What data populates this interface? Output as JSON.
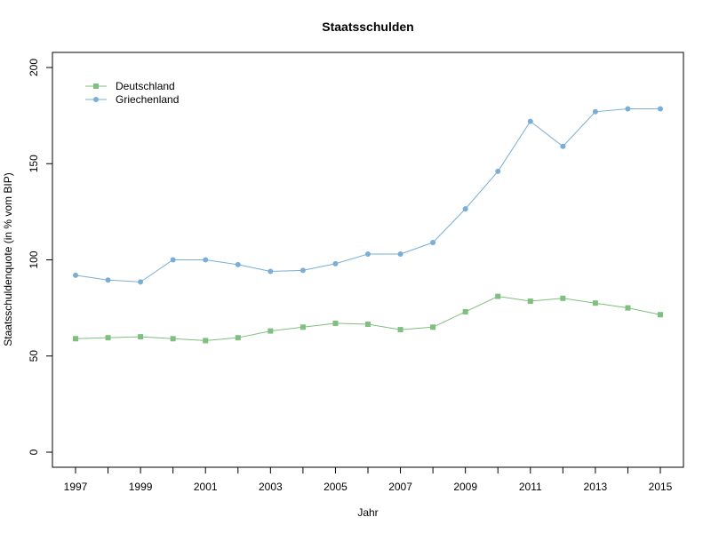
{
  "chart_data": {
    "type": "line",
    "title": "Staatsschulden",
    "xlabel": "Jahr",
    "ylabel": "Staatsschuldenquote (in % vom BIP)",
    "xlim": [
      1997,
      2015
    ],
    "ylim": [
      0,
      200
    ],
    "x": [
      1997,
      1998,
      1999,
      2000,
      2001,
      2002,
      2003,
      2004,
      2005,
      2006,
      2007,
      2008,
      2009,
      2010,
      2011,
      2012,
      2013,
      2014,
      2015
    ],
    "x_tick_labels": [
      "1997",
      "1999",
      "2001",
      "2003",
      "2005",
      "2007",
      "2009",
      "2011",
      "2013",
      "2015"
    ],
    "y_ticks": [
      0,
      50,
      100,
      150,
      200
    ],
    "grid": false,
    "legend_position": "top-left",
    "series": [
      {
        "name": "Deutschland",
        "color": "#7fbf7f",
        "marker": "square",
        "values": [
          59,
          59.5,
          60,
          59,
          58,
          59.5,
          63,
          65,
          67,
          66.5,
          63.7,
          65,
          73,
          81,
          78.5,
          80,
          77.5,
          75,
          71.5
        ]
      },
      {
        "name": "Griechenland",
        "color": "#7aaed6",
        "marker": "circle",
        "values": [
          92,
          89.5,
          88.5,
          100,
          100,
          97.5,
          94,
          94.5,
          98,
          103,
          103,
          109,
          126.5,
          146,
          172,
          159,
          177,
          178.5,
          178.5
        ]
      }
    ]
  }
}
